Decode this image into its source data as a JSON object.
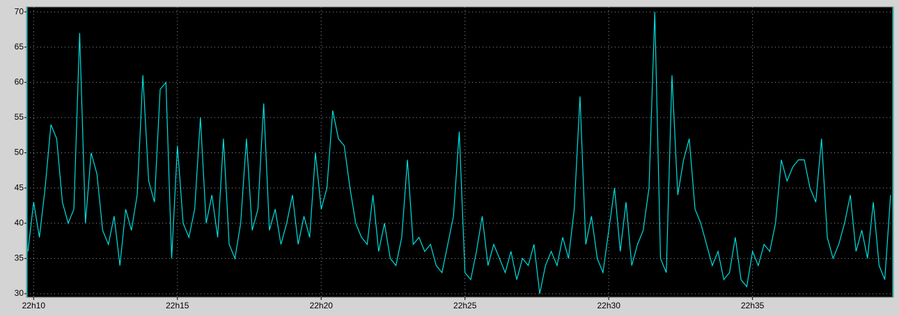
{
  "chart_data": {
    "type": "line",
    "x": [
      9.8,
      10.0,
      10.2,
      10.4,
      10.6,
      10.8,
      11.0,
      11.2,
      11.4,
      11.6,
      11.8,
      12.0,
      12.2,
      12.4,
      12.6,
      12.8,
      13.0,
      13.2,
      13.4,
      13.6,
      13.8,
      14.0,
      14.2,
      14.4,
      14.6,
      14.8,
      15.0,
      15.2,
      15.4,
      15.6,
      15.8,
      16.0,
      16.2,
      16.4,
      16.6,
      16.8,
      17.0,
      17.2,
      17.4,
      17.6,
      17.8,
      18.0,
      18.2,
      18.4,
      18.6,
      18.8,
      19.0,
      19.2,
      19.4,
      19.6,
      19.8,
      20.0,
      20.2,
      20.4,
      20.6,
      20.8,
      21.0,
      21.2,
      21.4,
      21.6,
      21.8,
      22.0,
      22.2,
      22.4,
      22.6,
      22.8,
      23.0,
      23.2,
      23.4,
      23.6,
      23.8,
      24.0,
      24.2,
      24.4,
      24.6,
      24.8,
      25.0,
      25.2,
      25.4,
      25.6,
      25.8,
      26.0,
      26.2,
      26.4,
      26.6,
      26.8,
      27.0,
      27.2,
      27.4,
      27.6,
      27.8,
      28.0,
      28.2,
      28.4,
      28.6,
      28.8,
      29.0,
      29.2,
      29.4,
      29.6,
      29.8,
      30.0,
      30.2,
      30.4,
      30.6,
      30.8,
      31.0,
      31.2,
      31.4,
      31.6,
      31.8,
      32.0,
      32.2,
      32.4,
      32.6,
      32.8,
      33.0,
      33.2,
      33.4,
      33.6,
      33.8,
      34.0,
      34.2,
      34.4,
      34.6,
      34.8,
      35.0,
      35.2,
      35.4,
      35.6,
      35.8,
      36.0,
      36.2,
      36.4,
      36.6,
      36.8,
      37.0,
      37.2,
      37.4,
      37.6,
      37.8,
      38.0,
      38.2,
      38.4,
      38.6,
      38.8,
      39.0,
      39.2,
      39.4,
      39.6,
      39.8
    ],
    "series": [
      {
        "color": "#00e0e0",
        "values": [
          36,
          43,
          38,
          45,
          54,
          52,
          43,
          40,
          42,
          67,
          40,
          50,
          47,
          39,
          37,
          41,
          34,
          42,
          39,
          44,
          61,
          46,
          43,
          59,
          60,
          35,
          51,
          40,
          38,
          42,
          55,
          40,
          44,
          38,
          52,
          37,
          35,
          40,
          52,
          39,
          42,
          57,
          39,
          42,
          37,
          40,
          44,
          37,
          41,
          38,
          50,
          42,
          45,
          56,
          52,
          51,
          45,
          40,
          38,
          37,
          44,
          36,
          40,
          35,
          34,
          38,
          49,
          37,
          38,
          36,
          37,
          34,
          33,
          37,
          41,
          53,
          33,
          32,
          36,
          41,
          34,
          37,
          35,
          33,
          36,
          32,
          35,
          34,
          37,
          30,
          34,
          36,
          34,
          38,
          35,
          42,
          58,
          37,
          41,
          35,
          33,
          39,
          45,
          36,
          43,
          34,
          37,
          39,
          45,
          70,
          35,
          33,
          61,
          44,
          49,
          52,
          42,
          40,
          37,
          34,
          36,
          32,
          33,
          38,
          32,
          31,
          36,
          34,
          37,
          36,
          40,
          49,
          46,
          48,
          49,
          49,
          45,
          43,
          52,
          38,
          35,
          37,
          40,
          44,
          36,
          39,
          35,
          43,
          34,
          32,
          44
        ]
      }
    ],
    "xlim": [
      9.75,
      39.9
    ],
    "xticks": [
      {
        "value": 10,
        "label": "22h10"
      },
      {
        "value": 15,
        "label": "22h15"
      },
      {
        "value": 20,
        "label": "22h20"
      },
      {
        "value": 25,
        "label": "22h25"
      },
      {
        "value": 30,
        "label": "22h30"
      },
      {
        "value": 35,
        "label": "22h35"
      }
    ],
    "ylim": [
      29.5,
      70.7
    ],
    "yticks": [
      30,
      35,
      40,
      45,
      50,
      55,
      60,
      65,
      70
    ],
    "grid": true
  }
}
